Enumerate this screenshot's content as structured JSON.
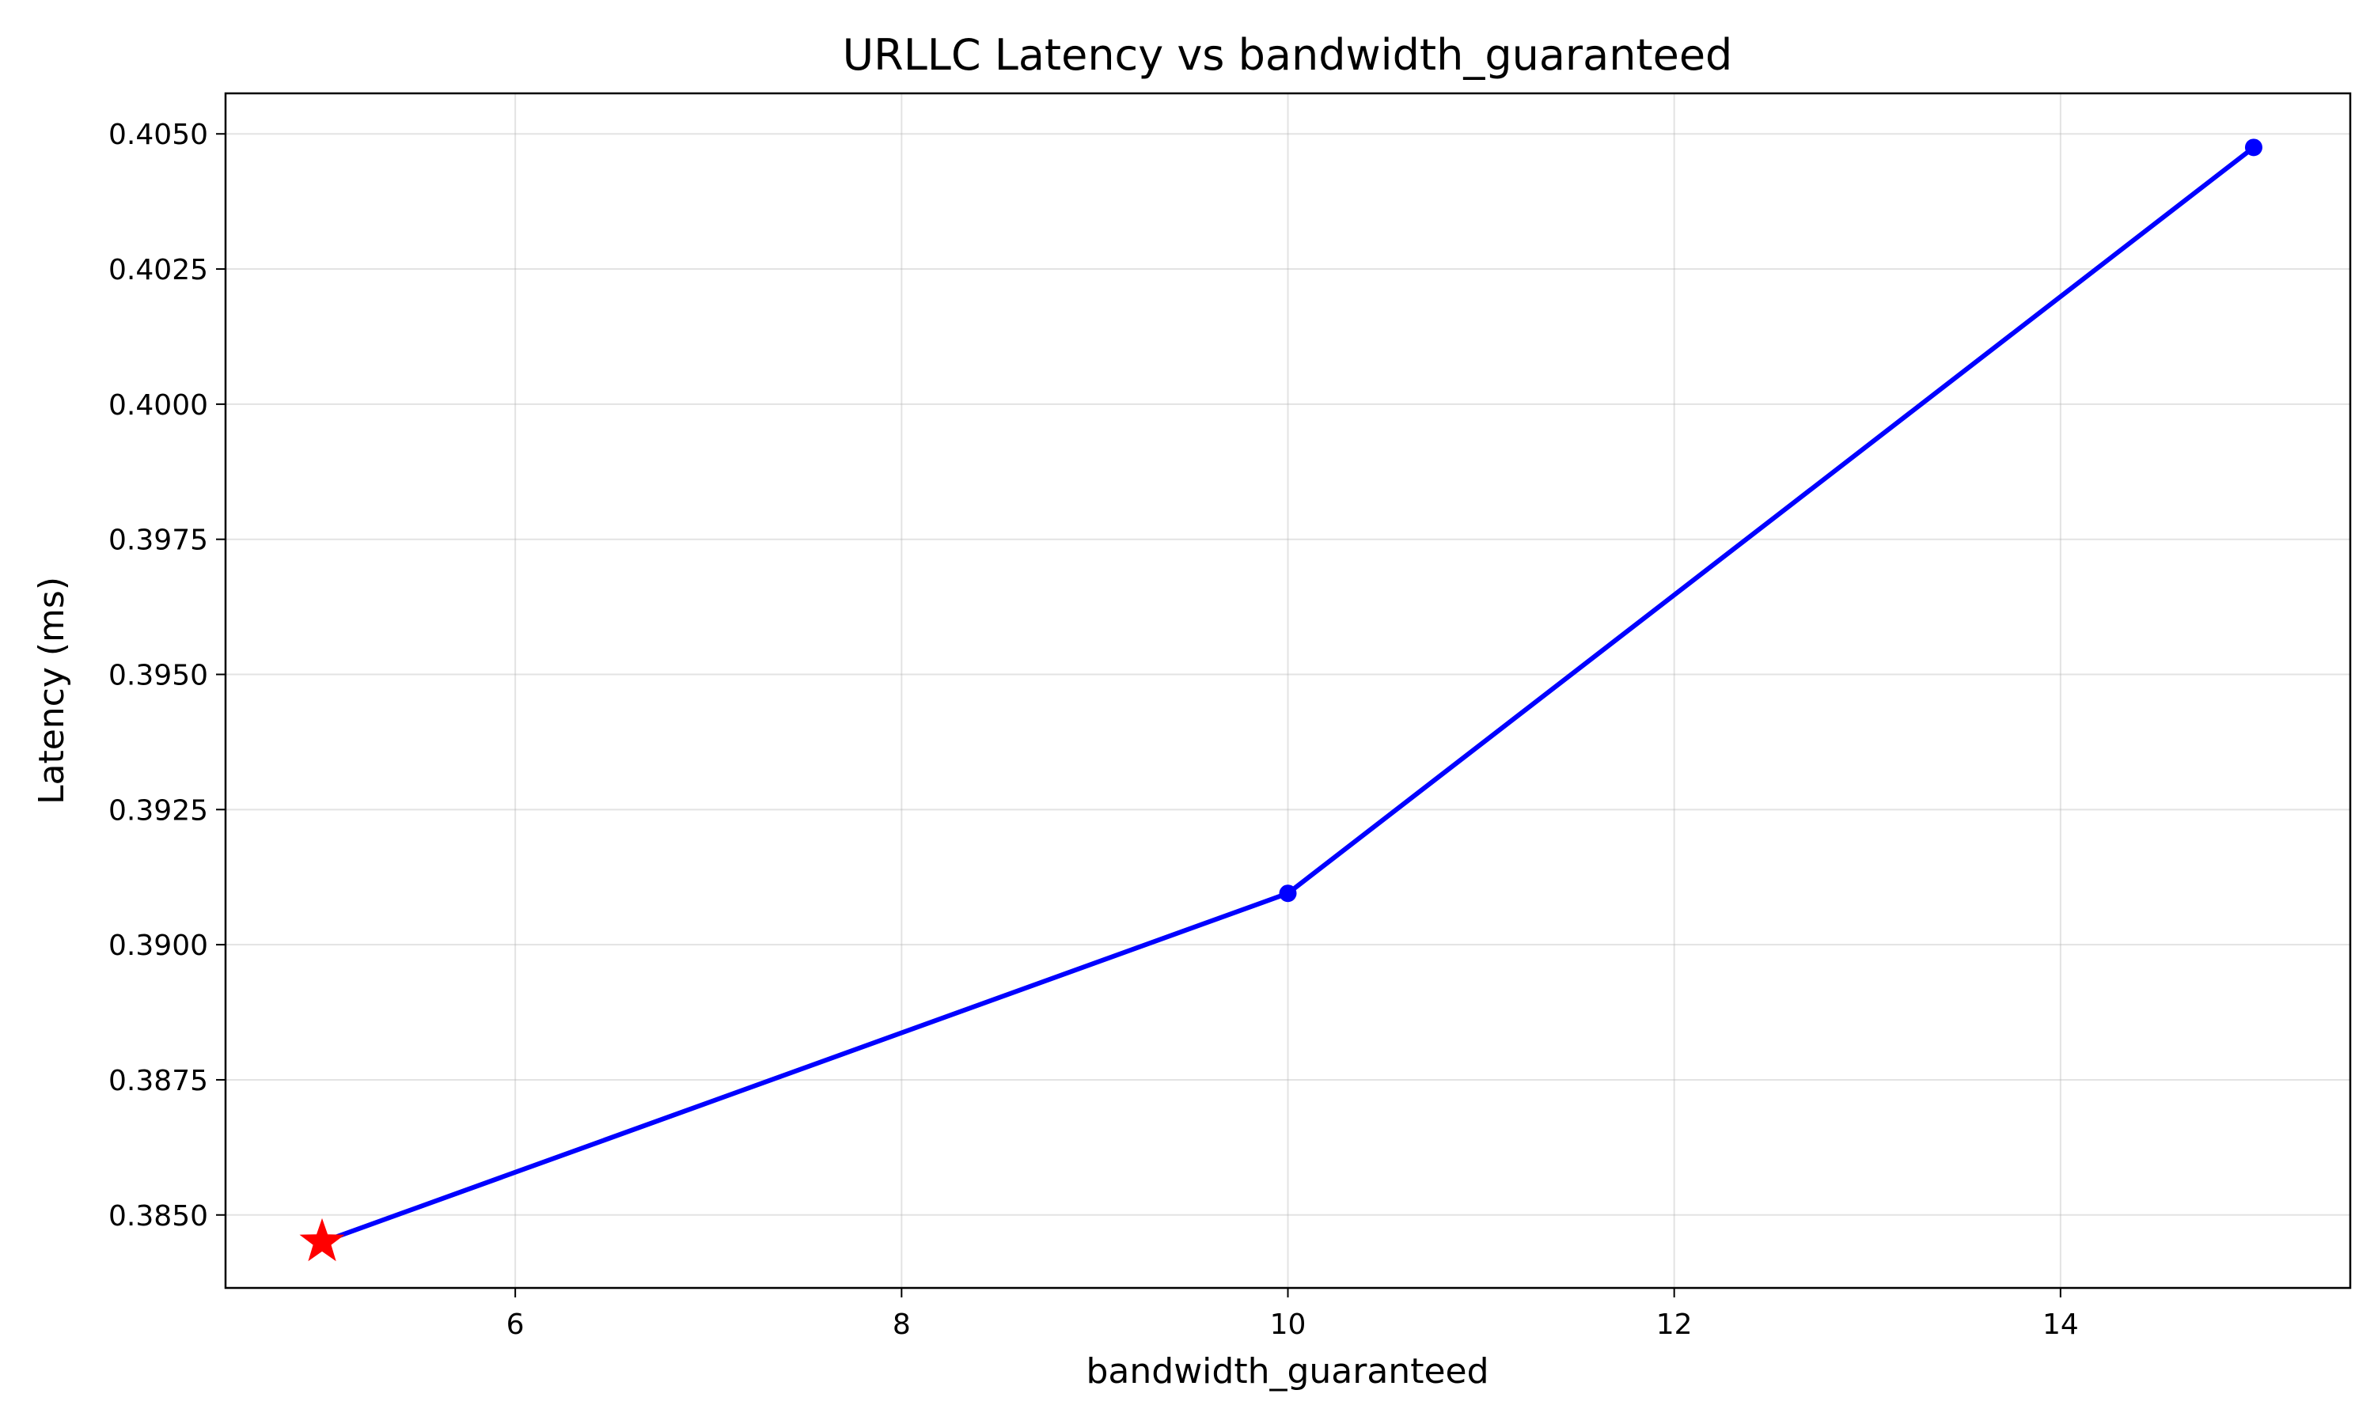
{
  "chart_data": {
    "type": "line",
    "title": "URLLC Latency vs bandwidth_guaranteed",
    "xlabel": "bandwidth_guaranteed",
    "ylabel": "Latency (ms)",
    "xlim": [
      4.5,
      15.5
    ],
    "ylim": [
      0.38365,
      0.40575
    ],
    "x_ticks": [
      6,
      8,
      10,
      12,
      14
    ],
    "y_ticks": [
      0.385,
      0.3875,
      0.39,
      0.3925,
      0.395,
      0.3975,
      0.4,
      0.4025,
      0.405
    ],
    "y_tick_labels": [
      "0.3850",
      "0.3875",
      "0.3900",
      "0.3925",
      "0.3950",
      "0.3975",
      "0.4000",
      "0.4025",
      "0.4050"
    ],
    "grid": true,
    "series": [
      {
        "x": [
          5,
          10,
          15
        ],
        "y": [
          0.3845,
          0.39095,
          0.40475
        ],
        "color": "#0000ff",
        "marker": "circle"
      }
    ],
    "highlight": {
      "x": 5,
      "y": 0.3845,
      "marker": "star",
      "color": "#ff0000"
    }
  }
}
